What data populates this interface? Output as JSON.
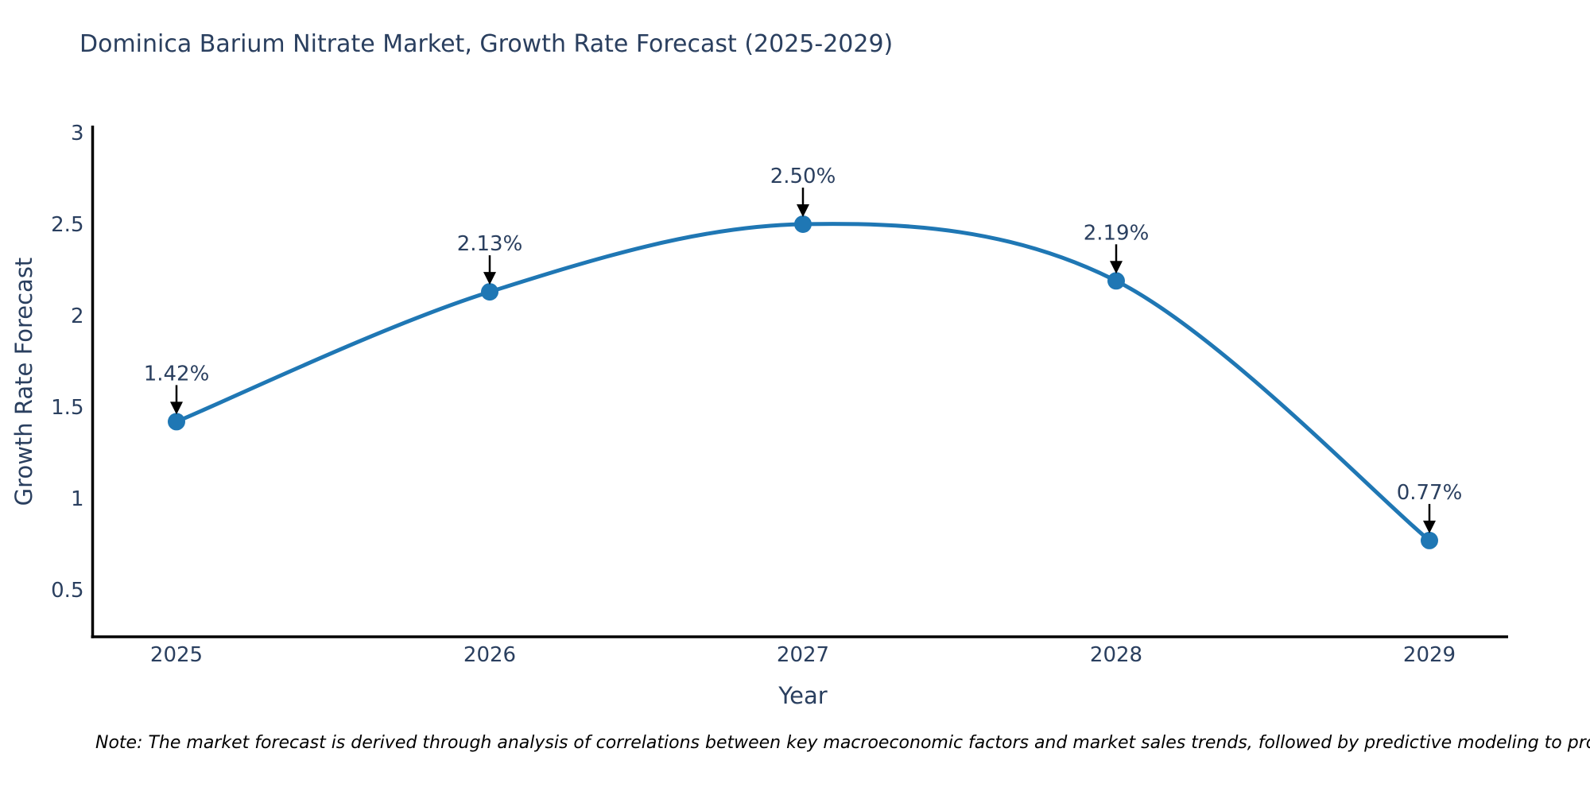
{
  "chart_data": {
    "type": "line",
    "title": "Dominica Barium Nitrate Market, Growth Rate Forecast (2025-2029)",
    "xlabel": "Year",
    "ylabel": "Growth Rate Forecast",
    "x": [
      2025,
      2026,
      2027,
      2028,
      2029
    ],
    "series": [
      {
        "name": "Growth Rate Forecast",
        "values": [
          1.42,
          2.13,
          2.5,
          2.19,
          0.77
        ],
        "point_labels": [
          "1.42%",
          "2.13%",
          "2.50%",
          "2.19%",
          "0.77%"
        ]
      }
    ],
    "yticks": [
      0.5,
      1,
      1.5,
      2,
      2.5,
      3
    ],
    "ylim": [
      0.24,
      3.03
    ],
    "grid": false,
    "legend": false,
    "line_shape": "spline",
    "marker": "circle",
    "annotations_have_arrows": true,
    "colors": {
      "line": "#1f77b4",
      "marker": "#1f77b4",
      "text": "#2a3f5f",
      "axis": "#000000",
      "arrow": "#000000",
      "background": "#ffffff"
    },
    "note": "Note: The market forecast is derived through analysis of correlations between key macroeconomic factors and market sales trends, followed by predictive modeling to project future sales"
  }
}
